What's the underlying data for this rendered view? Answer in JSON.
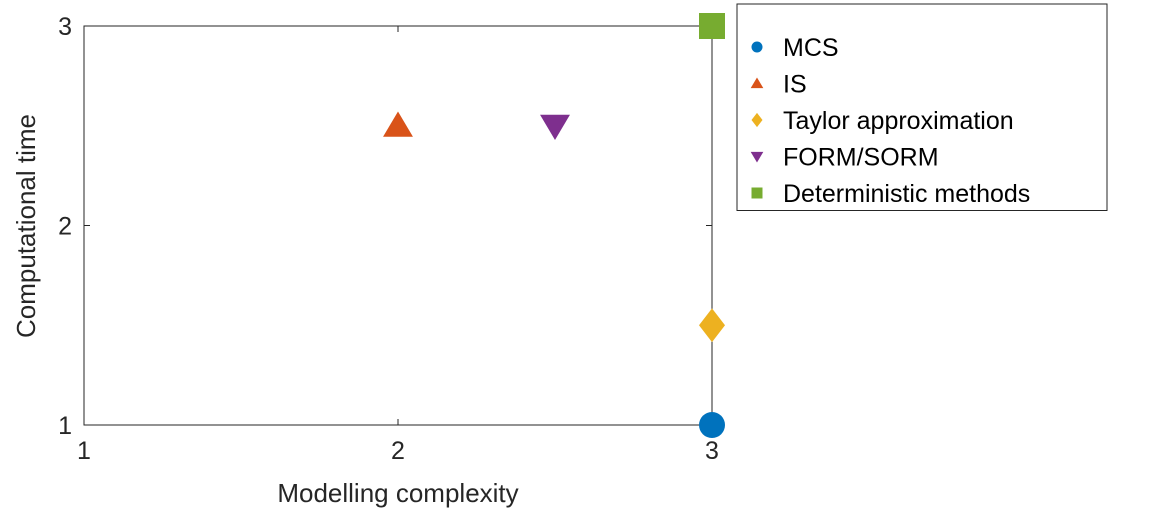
{
  "chart_data": {
    "type": "scatter",
    "title": "",
    "xlabel": "Modelling complexity",
    "ylabel": "Computational time",
    "xlim": [
      1,
      3
    ],
    "ylim": [
      1,
      3
    ],
    "xticks": [
      "1",
      "2",
      "3"
    ],
    "yticks": [
      "1",
      "2",
      "3"
    ],
    "grid": false,
    "legend_position": "outside-right-top",
    "series": [
      {
        "name": "MCS",
        "marker": "circle",
        "color": "#0072BD",
        "x": 3,
        "y": 1
      },
      {
        "name": "IS",
        "marker": "triangle-up",
        "color": "#D95319",
        "x": 2,
        "y": 2.5
      },
      {
        "name": "Taylor approximation",
        "marker": "diamond",
        "color": "#EDB120",
        "x": 3,
        "y": 1.5
      },
      {
        "name": "FORM/SORM",
        "marker": "triangle-down",
        "color": "#7E2F8E",
        "x": 2.5,
        "y": 2.5
      },
      {
        "name": "Deterministic methods",
        "marker": "square",
        "color": "#77AC30",
        "x": 3,
        "y": 3
      }
    ]
  }
}
